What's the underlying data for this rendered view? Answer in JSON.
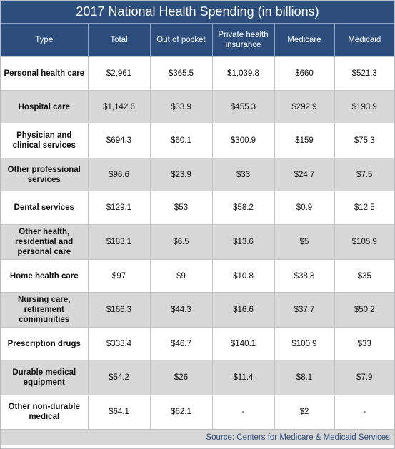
{
  "title": "2017 National Health Spending (in billions)",
  "headers": [
    "Type",
    "Total",
    "Out of pocket",
    "Private health insurance",
    "Medicare",
    "Medicaid"
  ],
  "rows": [
    [
      "Personal health care",
      "$2,961",
      "$365.5",
      "$1,039.8",
      "$660",
      "$521.3"
    ],
    [
      "Hospital care",
      "$1,142.6",
      "$33.9",
      "$455.3",
      "$292.9",
      "$193.9"
    ],
    [
      "Physician and clinical services",
      "$694.3",
      "$60.1",
      "$300.9",
      "$159",
      "$75.3"
    ],
    [
      "Other professional services",
      "$96.6",
      "$23.9",
      "$33",
      "$24.7",
      "$7.5"
    ],
    [
      "Dental services",
      "$129.1",
      "$53",
      "$58.2",
      "$0.9",
      "$12.5"
    ],
    [
      "Other health, residential and personal care",
      "$183.1",
      "$6.5",
      "$13.6",
      "$5",
      "$105.9"
    ],
    [
      "Home health care",
      "$97",
      "$9",
      "$10.8",
      "$38.8",
      "$35"
    ],
    [
      "Nursing care, retirement communities",
      "$166.3",
      "$44.3",
      "$16.6",
      "$37.7",
      "$50.2"
    ],
    [
      "Prescription drugs",
      "$333.4",
      "$46.7",
      "$140.1",
      "$100.9",
      "$33"
    ],
    [
      "Durable medical equipment",
      "$54.2",
      "$26",
      "$11.4",
      "$8.1",
      "$7.9"
    ],
    [
      "Other non-durable medical",
      "$64.1",
      "$62.1",
      "-",
      "$2",
      "-"
    ]
  ],
  "source": "Source: Centers for Medicare & Medicaid Services",
  "colors": {
    "header_bg": "#2d4d7c",
    "stripe": "#d7d7d7"
  }
}
